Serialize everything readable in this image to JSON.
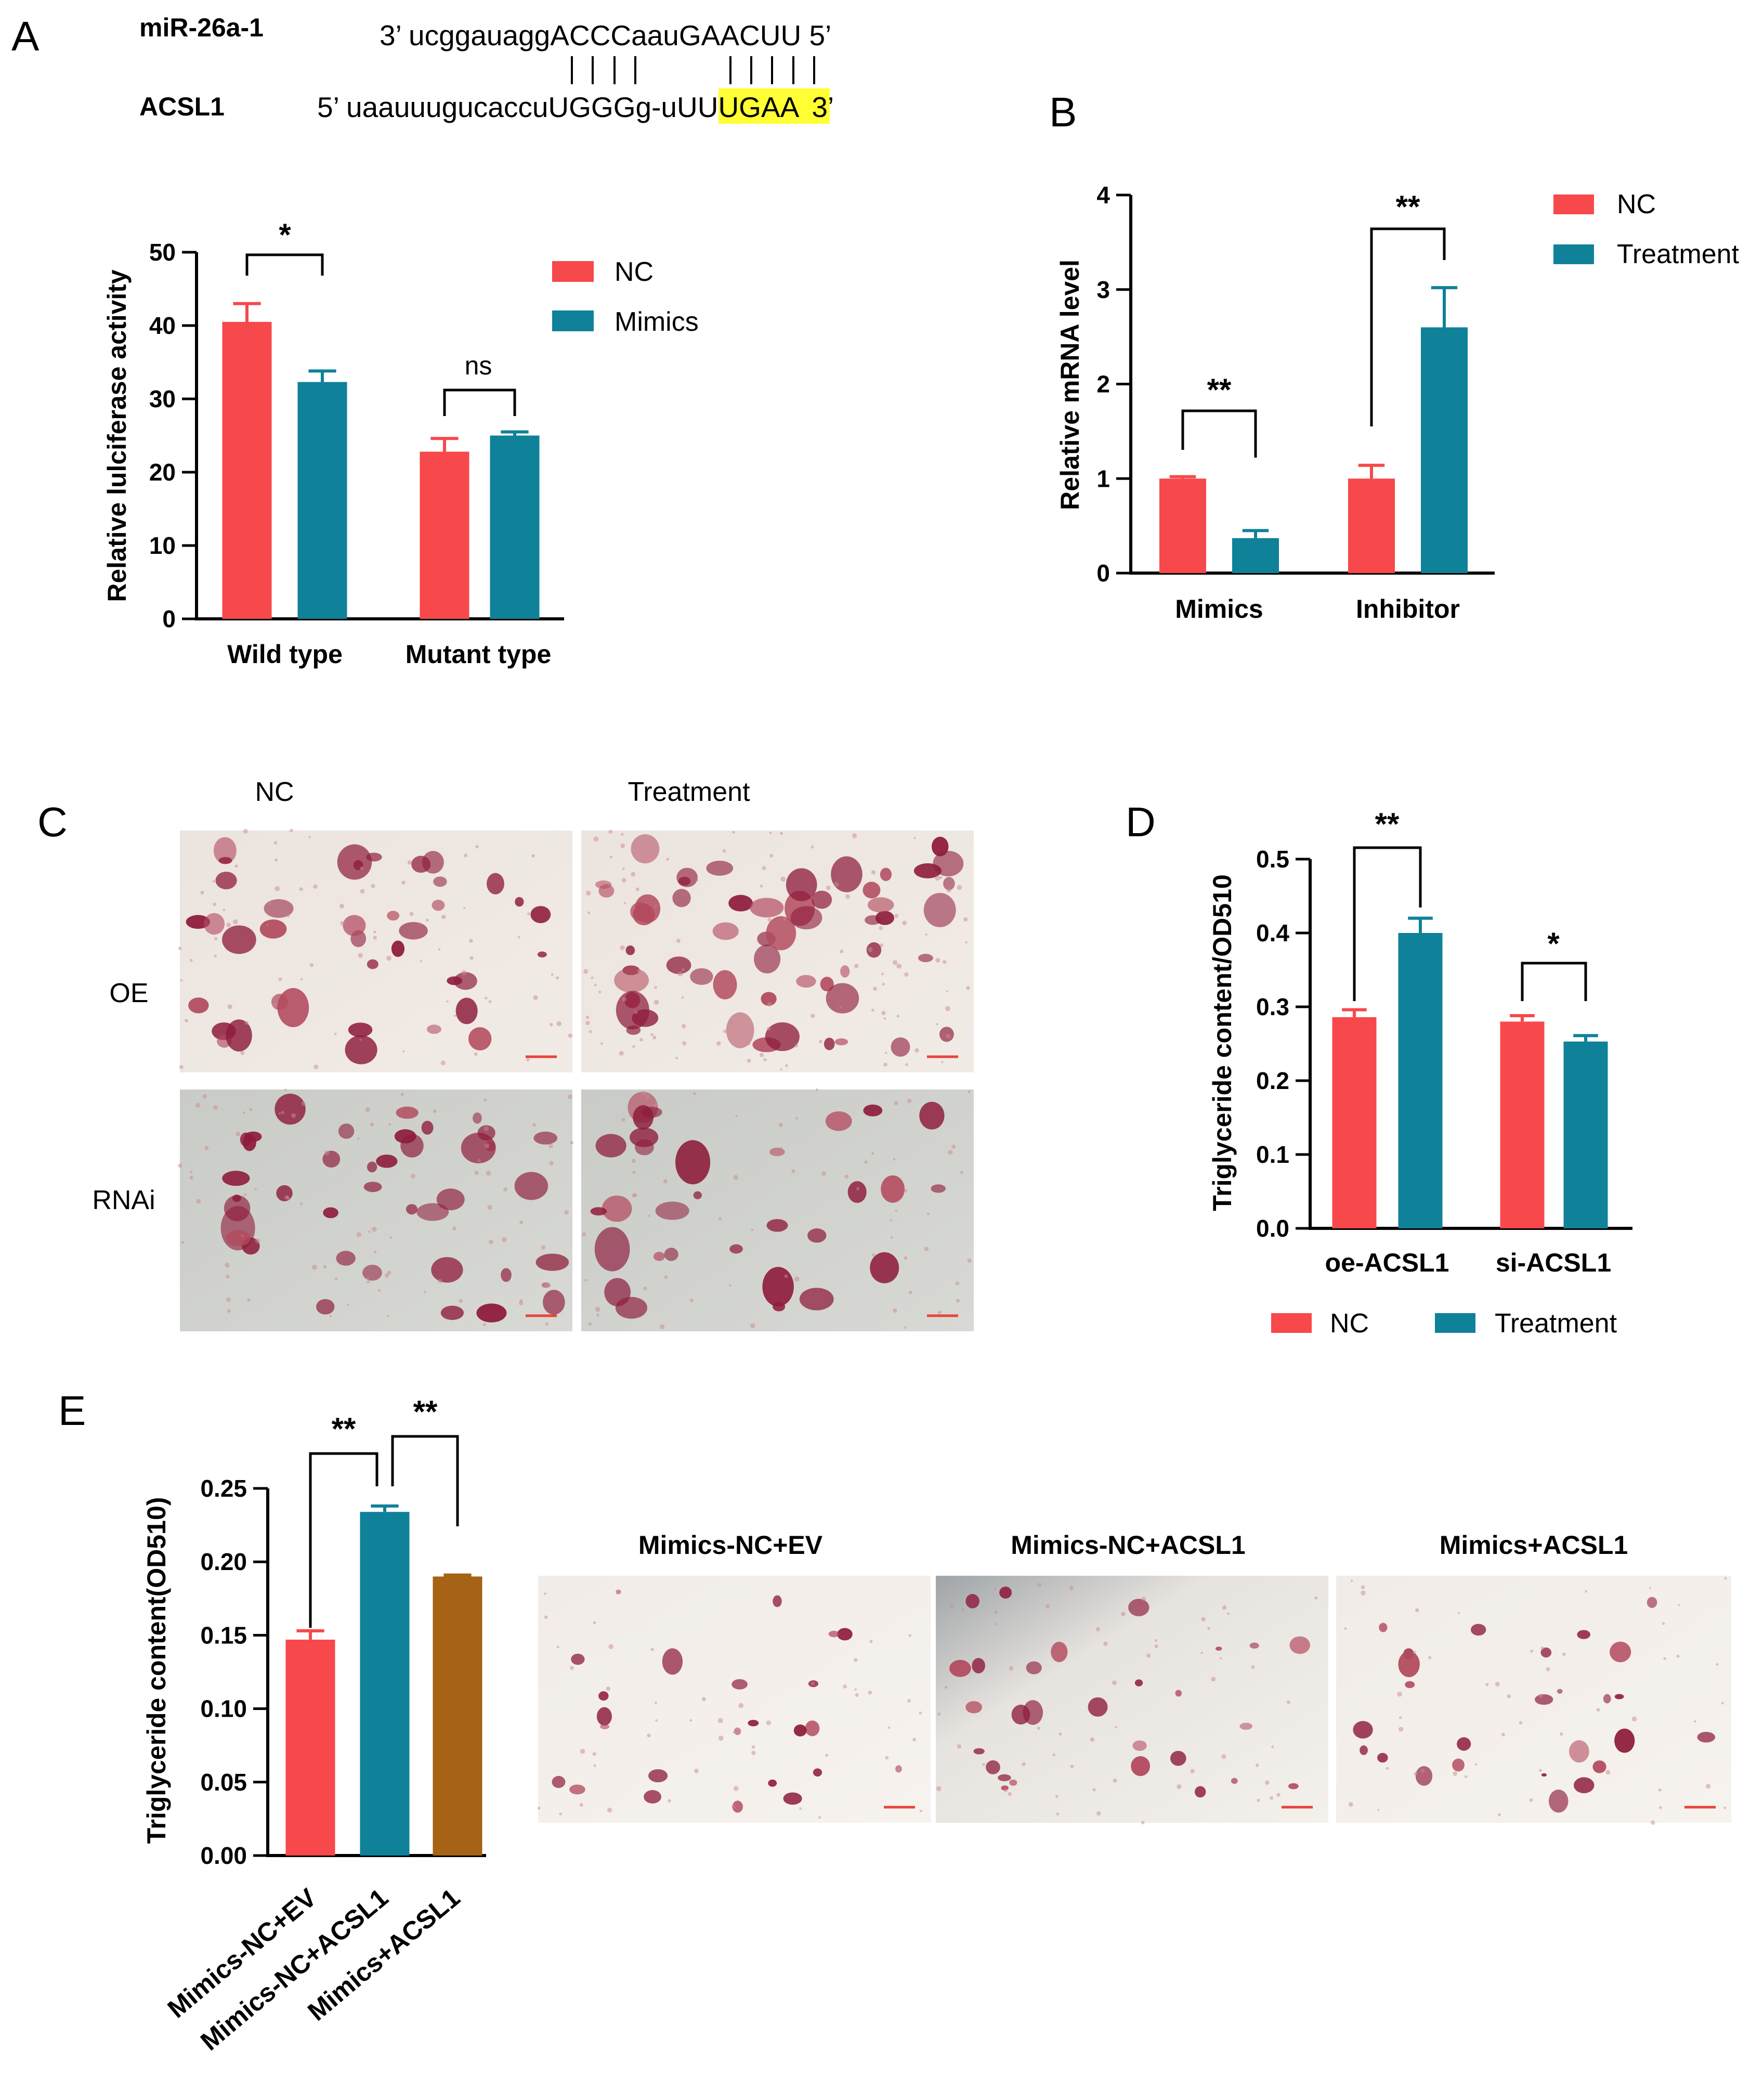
{
  "colors": {
    "nc": "#f7484b",
    "teal": "#0f8199",
    "brown": "#a66215",
    "highlight": "#ffff33",
    "scalebar": "#e8443a"
  },
  "panel_letters": [
    "A",
    "B",
    "C",
    "D",
    "E"
  ],
  "sequence": {
    "mir_name": "miR-26a-1",
    "mir_seq": "3’ ucggauaggACCCaauGAACUU  5’",
    "target_name": "ACSL1",
    "target_seq_prefix": "5’ uaauuugucaccuUGGGg-uU",
    "target_seq_seed": "UUGAA",
    "target_seq_suffix": "3’"
  },
  "micrographs_c": {
    "col_labels": [
      "NC",
      "Treatment"
    ],
    "row_labels": [
      "OE",
      "RNAi"
    ]
  },
  "micrographs_e": {
    "col_labels": [
      "Mimics-NC+EV",
      "Mimics-NC+ACSL1",
      "Mimics+ACSL1"
    ]
  },
  "chart_data": [
    {
      "panel": "A",
      "type": "bar",
      "categories": [
        "Wild type",
        "Mutant type"
      ],
      "series": [
        {
          "name": "NC",
          "values": [
            40.5,
            22.8
          ],
          "errors": [
            2.5,
            1.8
          ]
        },
        {
          "name": "Mimics",
          "values": [
            32.3,
            25.0
          ],
          "errors": [
            1.5,
            0.5
          ]
        }
      ],
      "ylabel": "Relative lulciferase activity",
      "ylim": [
        0,
        50
      ],
      "yticks": [
        0,
        10,
        20,
        30,
        40,
        50
      ],
      "significance": [
        "*",
        "ns"
      ],
      "legend": "right"
    },
    {
      "panel": "B",
      "type": "bar",
      "categories": [
        "Mimics",
        "Inhibitor"
      ],
      "series": [
        {
          "name": "NC",
          "values": [
            1.0,
            1.0
          ],
          "errors": [
            0.02,
            0.14
          ]
        },
        {
          "name": "Treatment",
          "values": [
            0.37,
            2.6
          ],
          "errors": [
            0.08,
            0.42
          ]
        }
      ],
      "ylabel": "Relative mRNA level",
      "ylim": [
        0,
        4
      ],
      "yticks": [
        0,
        1,
        2,
        3,
        4
      ],
      "significance": [
        "**",
        "**"
      ],
      "legend": "right"
    },
    {
      "panel": "D",
      "type": "bar",
      "categories": [
        "oe-ACSL1",
        "si-ACSL1"
      ],
      "series": [
        {
          "name": "NC",
          "values": [
            0.286,
            0.28
          ],
          "errors": [
            0.01,
            0.008
          ]
        },
        {
          "name": "Treatment",
          "values": [
            0.4,
            0.253
          ],
          "errors": [
            0.02,
            0.008
          ]
        }
      ],
      "ylabel": "Triglyceride content/OD510",
      "ylim": [
        0,
        0.5
      ],
      "yticks": [
        "0.0",
        "0.1",
        "0.2",
        "0.3",
        "0.4",
        "0.5"
      ],
      "significance": [
        "**",
        "*"
      ],
      "legend": "bottom"
    },
    {
      "panel": "E",
      "type": "bar",
      "categories": [
        "Mimics-NC+EV",
        "Mimics-NC+ACSL1",
        "Mimics+ACSL1"
      ],
      "values": [
        0.147,
        0.234,
        0.19
      ],
      "errors": [
        0.006,
        0.004,
        0.001
      ],
      "ylabel": "Triglyceride content(OD510)",
      "ylim": [
        0,
        0.25
      ],
      "yticks": [
        "0.00",
        "0.05",
        "0.10",
        "0.15",
        "0.20",
        "0.25"
      ],
      "significance": [
        "**",
        "**"
      ]
    }
  ]
}
